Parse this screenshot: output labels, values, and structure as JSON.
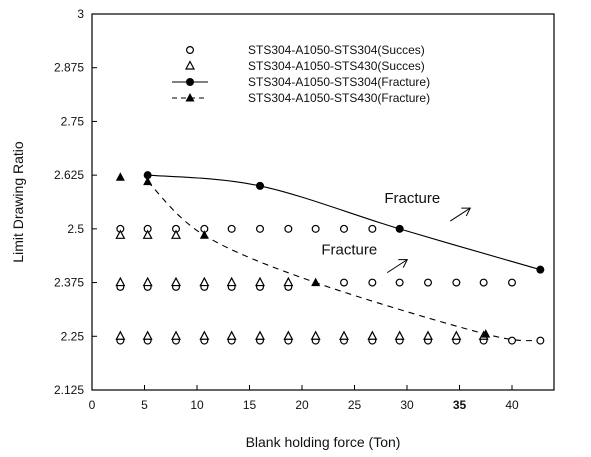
{
  "chart_data": {
    "type": "scatter",
    "title": "",
    "xlabel": "Blank holding force (Ton)",
    "ylabel": "Limit Drawing Ratio",
    "xlim": [
      0,
      44
    ],
    "ylim": [
      2.125,
      3
    ],
    "x_ticks": [
      0,
      5,
      10,
      15,
      20,
      25,
      30,
      35,
      40
    ],
    "y_ticks": [
      "2.125",
      "2.25",
      "2.375",
      "2.5",
      "2.625",
      "2.75",
      "2.875",
      "3"
    ],
    "legend_position": "top",
    "series": [
      {
        "name": "STS304-A1050-STS304(Succes)",
        "style": "open-circle",
        "points": [
          [
            2.7,
            2.5
          ],
          [
            5.3,
            2.5
          ],
          [
            8.0,
            2.5
          ],
          [
            10.7,
            2.5
          ],
          [
            13.3,
            2.5
          ],
          [
            16.0,
            2.5
          ],
          [
            18.7,
            2.5
          ],
          [
            21.3,
            2.5
          ],
          [
            24.0,
            2.5
          ],
          [
            26.7,
            2.5
          ],
          [
            2.7,
            2.365
          ],
          [
            5.3,
            2.365
          ],
          [
            8.0,
            2.365
          ],
          [
            10.7,
            2.365
          ],
          [
            13.3,
            2.365
          ],
          [
            16.0,
            2.365
          ],
          [
            18.7,
            2.365
          ],
          [
            24.0,
            2.375
          ],
          [
            26.7,
            2.375
          ],
          [
            29.3,
            2.375
          ],
          [
            32.0,
            2.375
          ],
          [
            34.7,
            2.375
          ],
          [
            37.3,
            2.375
          ],
          [
            40.0,
            2.375
          ],
          [
            2.7,
            2.24
          ],
          [
            5.3,
            2.24
          ],
          [
            8.0,
            2.24
          ],
          [
            10.7,
            2.24
          ],
          [
            13.3,
            2.24
          ],
          [
            16.0,
            2.24
          ],
          [
            18.7,
            2.24
          ],
          [
            21.3,
            2.24
          ],
          [
            24.0,
            2.24
          ],
          [
            26.7,
            2.24
          ],
          [
            29.3,
            2.24
          ],
          [
            32.0,
            2.24
          ],
          [
            34.7,
            2.24
          ],
          [
            37.3,
            2.24
          ],
          [
            40.0,
            2.24
          ],
          [
            42.7,
            2.24
          ]
        ]
      },
      {
        "name": "STS304-A1050-STS430(Succes)",
        "style": "open-triangle",
        "points": [
          [
            2.7,
            2.485
          ],
          [
            5.3,
            2.485
          ],
          [
            8.0,
            2.485
          ],
          [
            2.7,
            2.375
          ],
          [
            5.3,
            2.375
          ],
          [
            8.0,
            2.375
          ],
          [
            10.7,
            2.375
          ],
          [
            13.3,
            2.375
          ],
          [
            16.0,
            2.375
          ],
          [
            18.7,
            2.375
          ],
          [
            2.7,
            2.25
          ],
          [
            5.3,
            2.25
          ],
          [
            8.0,
            2.25
          ],
          [
            10.7,
            2.25
          ],
          [
            13.3,
            2.25
          ],
          [
            16.0,
            2.25
          ],
          [
            18.7,
            2.25
          ],
          [
            21.3,
            2.25
          ],
          [
            24.0,
            2.25
          ],
          [
            26.7,
            2.25
          ],
          [
            29.3,
            2.25
          ],
          [
            32.0,
            2.25
          ],
          [
            34.7,
            2.25
          ],
          [
            37.3,
            2.25
          ]
        ]
      },
      {
        "name": "STS304-A1050-STS304(Fracture)",
        "style": "solid-circle-line",
        "points": [
          [
            5.3,
            2.625
          ],
          [
            16.0,
            2.6
          ],
          [
            29.3,
            2.5
          ],
          [
            42.7,
            2.405
          ]
        ]
      },
      {
        "name": "STS304-A1050-STS430(Fracture)",
        "style": "solid-triangle-dashed-line",
        "points": [
          [
            2.7,
            2.62
          ],
          [
            5.3,
            2.61
          ],
          [
            10.7,
            2.485
          ],
          [
            21.3,
            2.375
          ],
          [
            37.5,
            2.255
          ]
        ]
      }
    ],
    "annotations": [
      {
        "text": "Fracture",
        "x": 30.5,
        "y": 2.56
      },
      {
        "text": "Fracture",
        "x": 24.5,
        "y": 2.44
      }
    ]
  }
}
